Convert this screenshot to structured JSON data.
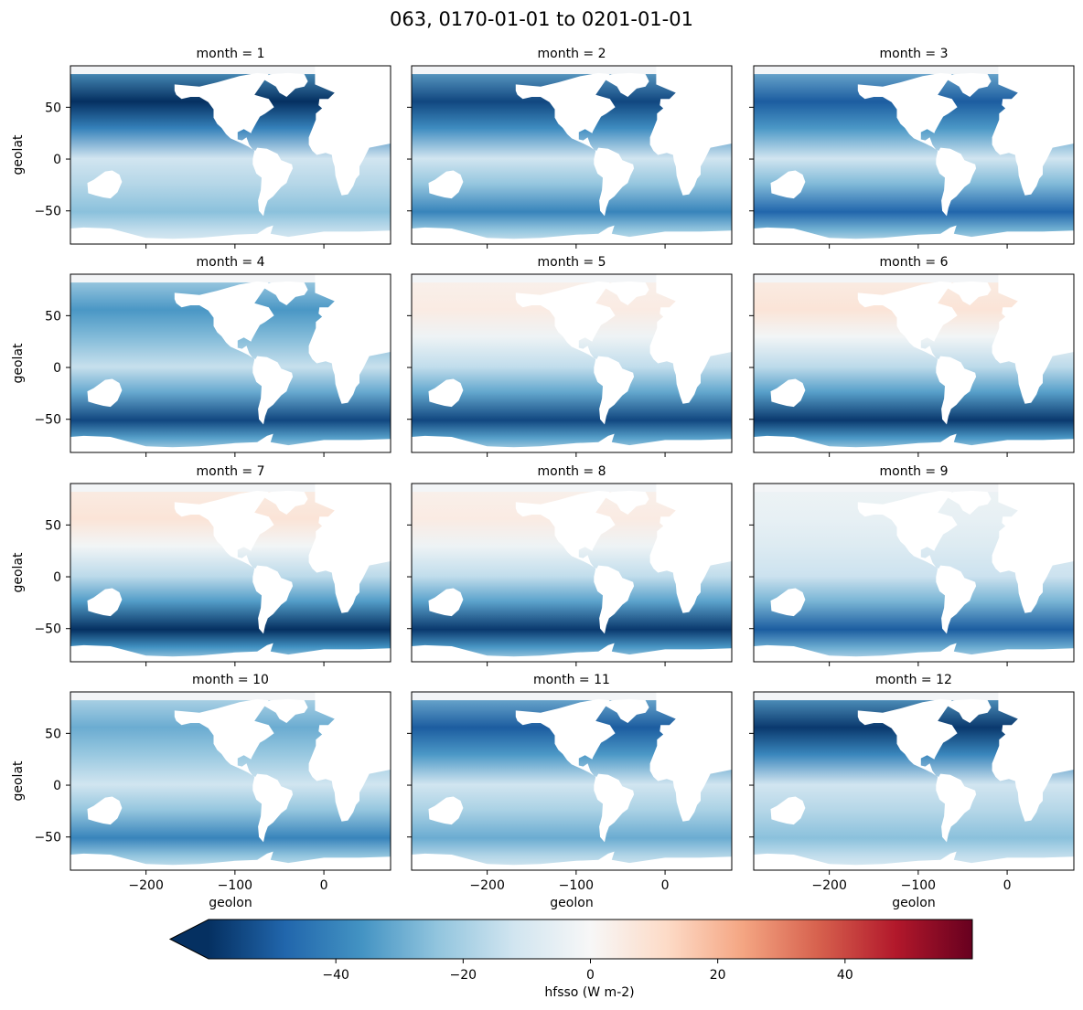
{
  "title": "063, 0170-01-01 to 0201-01-01",
  "chart_data": {
    "type": "heatmap",
    "variable_label": "hfsso (W m-2)",
    "colormap": "RdBu_r",
    "colorbar": {
      "vmin": -60,
      "vmax": 60,
      "extend": "min",
      "ticks": [
        -40,
        -20,
        0,
        20,
        40
      ],
      "tick_labels": [
        "−40",
        "−20",
        "0",
        "20",
        "40"
      ],
      "stops": [
        "#053061",
        "#2166ac",
        "#4393c3",
        "#92c5de",
        "#d1e5f0",
        "#f7f7f7",
        "#fddbc7",
        "#f4a582",
        "#d6604d",
        "#b2182b",
        "#67001f"
      ]
    },
    "xlabel": "geolon",
    "ylabel": "geolat",
    "xlim": [
      -285,
      75
    ],
    "ylim": [
      -82,
      90
    ],
    "xticks": [
      -200,
      -100,
      0
    ],
    "xtick_labels": [
      "−200",
      "−100",
      "0"
    ],
    "yticks": [
      -50,
      0,
      50
    ],
    "ytick_labels": [
      "−50",
      "0",
      "50"
    ],
    "panels": [
      {
        "label": "month = 1",
        "nh_flux": -60,
        "sh_flux": -25,
        "tropics_flux": -12
      },
      {
        "label": "month = 2",
        "nh_flux": -55,
        "sh_flux": -40,
        "tropics_flux": -12
      },
      {
        "label": "month = 3",
        "nh_flux": -50,
        "sh_flux": -48,
        "tropics_flux": -12
      },
      {
        "label": "month = 4",
        "nh_flux": -35,
        "sh_flux": -55,
        "tropics_flux": -14
      },
      {
        "label": "month = 5",
        "nh_flux": 5,
        "sh_flux": -55,
        "tropics_flux": -15
      },
      {
        "label": "month = 6",
        "nh_flux": 8,
        "sh_flux": -58,
        "tropics_flux": -16
      },
      {
        "label": "month = 7",
        "nh_flux": 8,
        "sh_flux": -60,
        "tropics_flux": -16
      },
      {
        "label": "month = 8",
        "nh_flux": 5,
        "sh_flux": -58,
        "tropics_flux": -15
      },
      {
        "label": "month = 9",
        "nh_flux": -5,
        "sh_flux": -50,
        "tropics_flux": -13
      },
      {
        "label": "month = 10",
        "nh_flux": -30,
        "sh_flux": -40,
        "tropics_flux": -12
      },
      {
        "label": "month = 11",
        "nh_flux": -50,
        "sh_flux": -30,
        "tropics_flux": -12
      },
      {
        "label": "month = 12",
        "nh_flux": -58,
        "sh_flux": -25,
        "tropics_flux": -12
      }
    ]
  }
}
